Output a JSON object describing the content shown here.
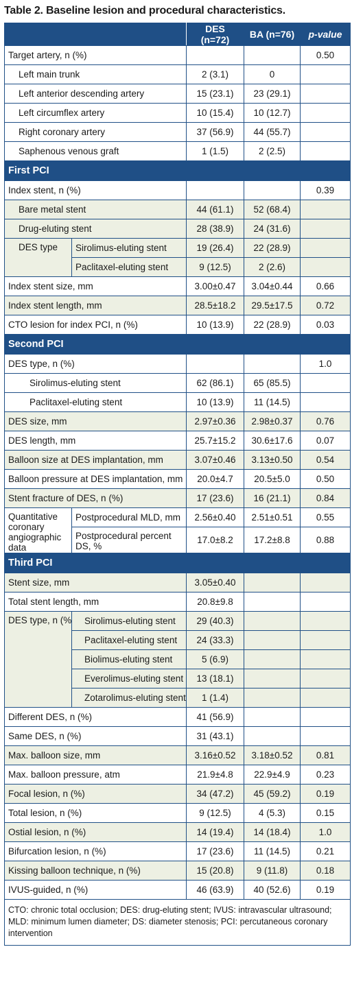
{
  "caption": "Table 2. Baseline lesion and procedural characteristics.",
  "headers": {
    "des": "DES (n=72)",
    "ba": "BA (n=76)",
    "p": "p-value"
  },
  "target_artery": {
    "label": "Target artery, n (%)",
    "p": "0.50",
    "items": [
      {
        "label": "Left main trunk",
        "des": "2 (3.1)",
        "ba": "0"
      },
      {
        "label": "Left anterior descending artery",
        "des": "15 (23.1)",
        "ba": "23 (29.1)"
      },
      {
        "label": "Left circumflex artery",
        "des": "10 (15.4)",
        "ba": "10 (12.7)"
      },
      {
        "label": "Right coronary artery",
        "des": "37 (56.9)",
        "ba": "44 (55.7)"
      },
      {
        "label": "Saphenous venous graft",
        "des": "1 (1.5)",
        "ba": "2 (2.5)"
      }
    ]
  },
  "first_pci": {
    "title": "First PCI",
    "index_stent": {
      "label": "Index stent, n (%)",
      "p": "0.39"
    },
    "bms": {
      "label": "Bare metal stent",
      "des": "44 (61.1)",
      "ba": "52 (68.4)"
    },
    "des_stent": {
      "label": "Drug-eluting stent",
      "des": "28 (38.9)",
      "ba": "24 (31.6)"
    },
    "des_type": {
      "label": "DES type",
      "items": [
        {
          "label": "Sirolimus-eluting stent",
          "des": "19 (26.4)",
          "ba": "22 (28.9)"
        },
        {
          "label": "Paclitaxel-eluting stent",
          "des": "9 (12.5)",
          "ba": "2 (2.6)"
        }
      ]
    },
    "size": {
      "label": "Index stent size, mm",
      "des": "3.00±0.47",
      "ba": "3.04±0.44",
      "p": "0.66"
    },
    "length": {
      "label": "Index stent length, mm",
      "des": "28.5±18.2",
      "ba": "29.5±17.5",
      "p": "0.72"
    },
    "cto": {
      "label": "CTO lesion for index PCI, n (%)",
      "des": "10 (13.9)",
      "ba": "22 (28.9)",
      "p": "0.03"
    }
  },
  "second_pci": {
    "title": "Second PCI",
    "des_type": {
      "label": "DES type, n (%)",
      "p": "1.0"
    },
    "sirolimus": {
      "label": "Sirolimus-eluting stent",
      "des": "62 (86.1)",
      "ba": "65 (85.5)"
    },
    "paclitaxel": {
      "label": "Paclitaxel-eluting stent",
      "des": "10 (13.9)",
      "ba": "11 (14.5)"
    },
    "rows": [
      {
        "label": "DES size, mm",
        "des": "2.97±0.36",
        "ba": "2.98±0.37",
        "p": "0.76"
      },
      {
        "label": "DES length, mm",
        "des": "25.7±15.2",
        "ba": "30.6±17.6",
        "p": "0.07"
      },
      {
        "label": "Balloon size at DES implantation, mm",
        "des": "3.07±0.46",
        "ba": "3.13±0.50",
        "p": "0.54"
      },
      {
        "label": "Balloon pressure at DES implantation, mm",
        "des": "20.0±4.7",
        "ba": "20.5±5.0",
        "p": "0.50"
      },
      {
        "label": "Stent fracture of DES, n (%)",
        "des": "17 (23.6)",
        "ba": "16 (21.1)",
        "p": "0.84"
      }
    ],
    "qca": {
      "label": "Quantitative coronary angiographic data",
      "items": [
        {
          "label": "Postprocedural MLD, mm",
          "des": "2.56±0.40",
          "ba": "2.51±0.51",
          "p": "0.55"
        },
        {
          "label": "Postprocedural percent DS, %",
          "des": "17.0±8.2",
          "ba": "17.2±8.8",
          "p": "0.88"
        }
      ]
    }
  },
  "third_pci": {
    "title": "Third PCI",
    "stent_size": {
      "label": "Stent size, mm",
      "des": "3.05±0.40"
    },
    "total_length": {
      "label": "Total stent length, mm",
      "des": "20.8±9.8"
    },
    "des_type": {
      "label": "DES type, n (%)",
      "items": [
        {
          "label": "Sirolimus-eluting stent",
          "des": "29 (40.3)"
        },
        {
          "label": "Paclitaxel-eluting stent",
          "des": "24 (33.3)"
        },
        {
          "label": "Biolimus-eluting stent",
          "des": "5 (6.9)"
        },
        {
          "label": "Everolimus-eluting stent",
          "des": "13 (18.1)"
        },
        {
          "label": "Zotarolimus-eluting stent",
          "des": "1 (1.4)"
        }
      ]
    },
    "different_des": {
      "label": "Different DES, n (%)",
      "des": "41 (56.9)"
    },
    "same_des": {
      "label": "Same DES, n (%)",
      "des": "31 (43.1)"
    },
    "rows": [
      {
        "label": "Max. balloon size, mm",
        "des": "3.16±0.52",
        "ba": "3.18±0.52",
        "p": "0.81"
      },
      {
        "label": "Max. balloon pressure, atm",
        "des": "21.9±4.8",
        "ba": "22.9±4.9",
        "p": "0.23"
      },
      {
        "label": "Focal lesion, n (%)",
        "des": "34 (47.2)",
        "ba": "45 (59.2)",
        "p": "0.19"
      },
      {
        "label": "Total lesion, n (%)",
        "des": "9 (12.5)",
        "ba": "4 (5.3)",
        "p": "0.15"
      },
      {
        "label": "Ostial lesion, n (%)",
        "des": "14 (19.4)",
        "ba": "14 (18.4)",
        "p": "1.0"
      },
      {
        "label": "Bifurcation lesion, n (%)",
        "des": "17 (23.6)",
        "ba": "11 (14.5)",
        "p": "0.21"
      },
      {
        "label": "Kissing balloon technique, n (%)",
        "des": "15 (20.8)",
        "ba": "9 (11.8)",
        "p": "0.18"
      },
      {
        "label": "IVUS-guided, n (%)",
        "des": "46 (63.9)",
        "ba": "40 (52.6)",
        "p": "0.19"
      }
    ]
  },
  "footnote": "CTO: chronic total occlusion; DES: drug-eluting stent; IVUS: intravascular ultrasound; MLD: minimum lumen diameter; DS: diameter stenosis; PCI: percutaneous coronary intervention"
}
